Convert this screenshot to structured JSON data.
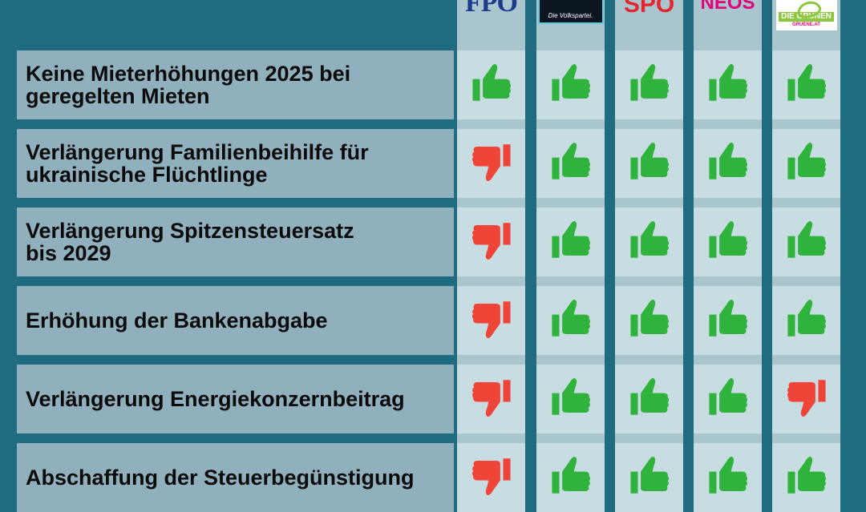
{
  "parties": [
    {
      "id": "fpo",
      "logo_text": "FPÖ"
    },
    {
      "id": "ovp",
      "logo_text": "Die Volkspartei."
    },
    {
      "id": "spo",
      "logo_text": "SPÖ"
    },
    {
      "id": "neos",
      "logo_text": "NEOS"
    },
    {
      "id": "gruene",
      "logo_text": "DIE GRÜNEN",
      "logo_subtext": "GRUENE.AT"
    }
  ],
  "colors": {
    "background": "#1f6b7f",
    "label_cell": "#8fb0bc",
    "vote_cell": "#c8dde2",
    "thumb_up": "#2fb33d",
    "thumb_down": "#ef4438"
  },
  "rows": [
    {
      "label": "Keine Mieterhöhungen 2025 bei\ngeregelten Mieten",
      "votes": [
        "up",
        "up",
        "up",
        "up",
        "up"
      ]
    },
    {
      "label": "Verlängerung Familienbeihilfe für\nukrainische Flüchtlinge",
      "votes": [
        "down",
        "up",
        "up",
        "up",
        "up"
      ]
    },
    {
      "label": "Verlängerung Spitzensteuersatz\nbis 2029",
      "votes": [
        "down",
        "up",
        "up",
        "up",
        "up"
      ]
    },
    {
      "label": "Erhöhung der Bankenabgabe",
      "votes": [
        "down",
        "up",
        "up",
        "up",
        "up"
      ]
    },
    {
      "label": "Verlängerung Energiekonzernbeitrag",
      "votes": [
        "down",
        "up",
        "up",
        "up",
        "down"
      ]
    },
    {
      "label": "Abschaffung der Steuerbegünstigung",
      "votes": [
        "down",
        "up",
        "up",
        "up",
        "up"
      ]
    }
  ]
}
